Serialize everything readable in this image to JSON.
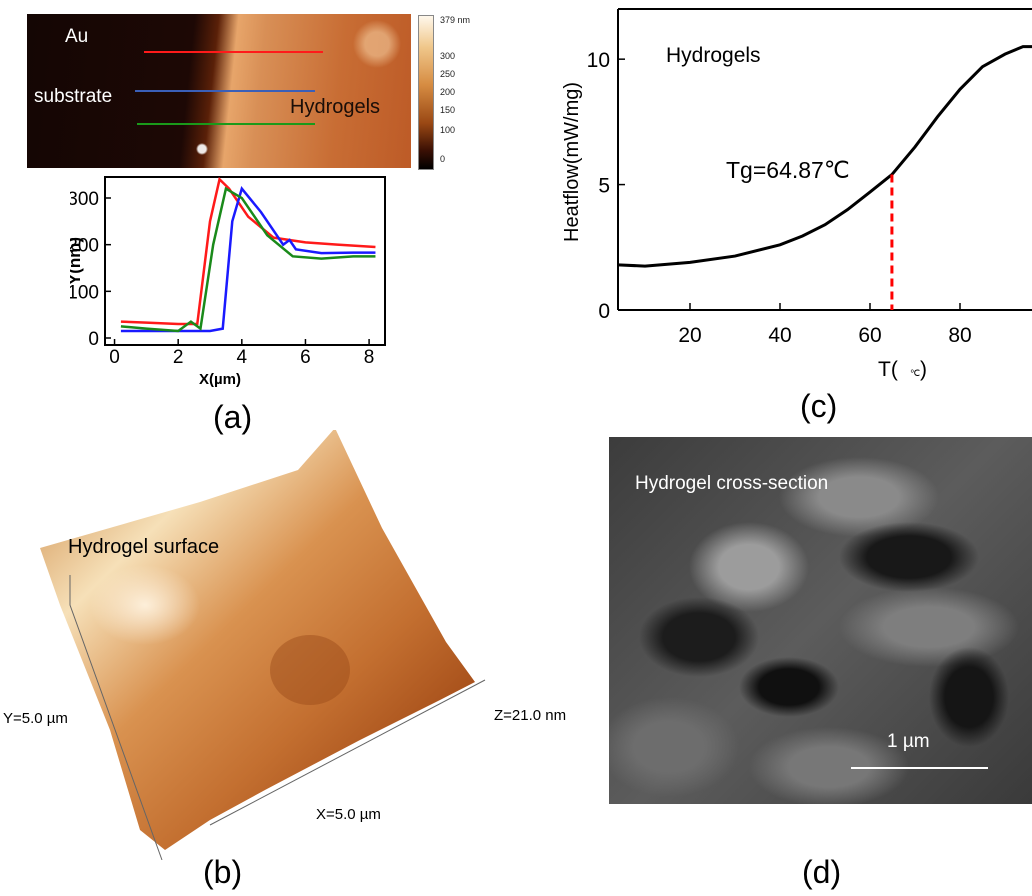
{
  "panel_labels": {
    "a": "(a)",
    "b": "(b)",
    "c": "(c)",
    "d": "(d)"
  },
  "afm_map": {
    "colorbar_max": "379 nm",
    "colorbar_ticks": [
      "300",
      "250",
      "200",
      "150",
      "100",
      "0"
    ],
    "label_au_1": "Au",
    "label_au_2": "substrate",
    "label_hydrogels": "Hydrogels",
    "line_colors": [
      "#ff1a1a",
      "#3a5fb8",
      "#1a9a1a"
    ]
  },
  "surface_3d": {
    "title": "Hydrogel surface",
    "x_label": "X=5.0 µm",
    "y_label": "Y=5.0 µm",
    "z_label": "Z=21.0 nm"
  },
  "sem": {
    "title": "Hydrogel cross-section",
    "scale_label": "1 µm"
  },
  "chart_data": [
    {
      "type": "line",
      "xlabel": "X(µm)",
      "ylabel": "Y(nm)",
      "xlim": [
        -0.3,
        8.5
      ],
      "ylim": [
        -15,
        345
      ],
      "xticks": [
        "0",
        "2",
        "4",
        "6",
        "8"
      ],
      "yticks": [
        "0",
        "100",
        "200",
        "300"
      ],
      "series": [
        {
          "color": "#ff1a1a",
          "x": [
            0.2,
            1,
            2,
            2.6,
            3.0,
            3.3,
            3.6,
            4.2,
            5.0,
            6.0,
            7.0,
            8.2
          ],
          "y": [
            35,
            33,
            30,
            30,
            250,
            340,
            320,
            260,
            215,
            205,
            200,
            195
          ]
        },
        {
          "color": "#1a1aff",
          "x": [
            0.2,
            1,
            2,
            3.0,
            3.4,
            3.7,
            4.0,
            4.6,
            5.3,
            5.5,
            5.7,
            6.5,
            7.5,
            8.2
          ],
          "y": [
            15,
            15,
            15,
            15,
            20,
            250,
            320,
            270,
            200,
            210,
            190,
            182,
            183,
            183
          ]
        },
        {
          "color": "#1a8a1a",
          "x": [
            0.2,
            1,
            2,
            2.4,
            2.7,
            3.1,
            3.5,
            4.0,
            4.8,
            5.6,
            6.5,
            7.5,
            8.2
          ],
          "y": [
            25,
            20,
            15,
            35,
            20,
            200,
            320,
            300,
            220,
            175,
            170,
            175,
            175
          ]
        }
      ]
    },
    {
      "type": "line",
      "annotation": "Hydrogels",
      "tg_label": "Tg=64.87℃",
      "xlabel": "T(",
      "xlabel_end": ")",
      "ylabel": "Heatflow(mW/mg)",
      "xlim": [
        4,
        96
      ],
      "ylim": [
        0,
        12
      ],
      "xticks": [
        "20",
        "40",
        "60",
        "80"
      ],
      "yticks": [
        "0",
        "5",
        "10"
      ],
      "tg_x": 64.87,
      "series": [
        {
          "color": "#000000",
          "x": [
            4,
            10,
            20,
            30,
            40,
            45,
            50,
            55,
            60,
            64.87,
            70,
            75,
            80,
            85,
            90,
            94,
            96
          ],
          "y": [
            1.8,
            1.75,
            1.9,
            2.15,
            2.6,
            2.95,
            3.4,
            4.0,
            4.7,
            5.4,
            6.5,
            7.7,
            8.8,
            9.7,
            10.2,
            10.5,
            10.5
          ]
        }
      ]
    }
  ]
}
